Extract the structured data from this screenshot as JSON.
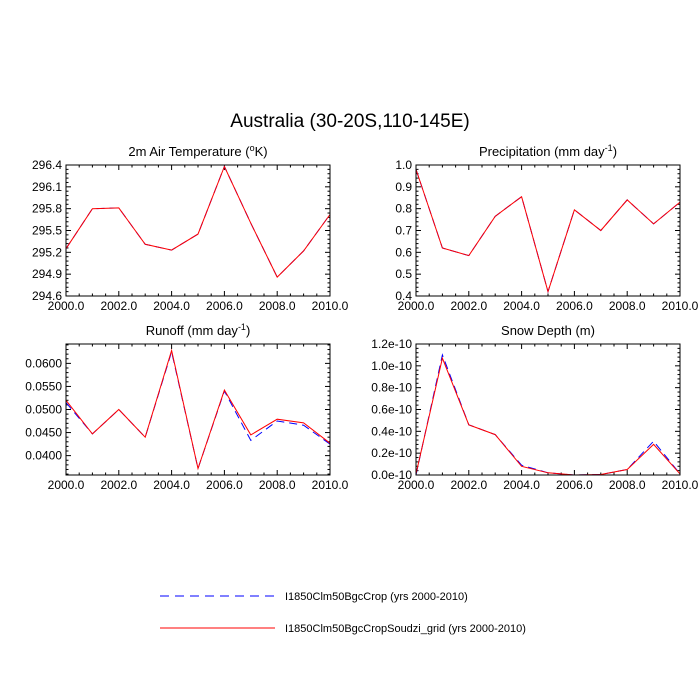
{
  "title": "Australia (30-20S,110-145E)",
  "legend": [
    {
      "label": "I1850Clm50BgcCrop (yrs 2000-2010)",
      "color": "#0000ff",
      "dash": true
    },
    {
      "label": "I1850Clm50BgcCropSoudzi_grid (yrs 2000-2010)",
      "color": "#ff0000",
      "dash": false
    }
  ],
  "chart_data": [
    {
      "type": "line",
      "title": "2m Air Temperature (°K)",
      "title_main": "2m Air Temperature (",
      "title_sup": "o",
      "title_tail": "K)",
      "x": [
        2000,
        2001,
        2002,
        2003,
        2004,
        2005,
        2006,
        2007,
        2008,
        2009,
        2010
      ],
      "xlim": [
        2000,
        2010
      ],
      "xticks": [
        "2000.0",
        "2002.0",
        "2004.0",
        "2006.0",
        "2008.0",
        "2010.0"
      ],
      "ylim": [
        294.6,
        296.4
      ],
      "yticks": [
        "294.6",
        "294.9",
        "295.2",
        "295.5",
        "295.8",
        "296.1",
        "296.4"
      ],
      "series": [
        {
          "name": "I1850Clm50BgcCrop (yrs 2000-2010)",
          "values": [
            295.25,
            295.8,
            295.81,
            295.31,
            295.23,
            295.45,
            296.38,
            295.6,
            294.86,
            295.22,
            295.72
          ]
        },
        {
          "name": "I1850Clm50BgcCropSoudzi_grid (yrs 2000-2010)",
          "values": [
            295.25,
            295.8,
            295.81,
            295.31,
            295.23,
            295.45,
            296.38,
            295.6,
            294.86,
            295.22,
            295.72
          ]
        }
      ]
    },
    {
      "type": "line",
      "title": "Precipitation (mm day-1)",
      "title_main": "Precipitation (mm day",
      "title_sup": "-1",
      "title_tail": ")",
      "x": [
        2000,
        2001,
        2002,
        2003,
        2004,
        2005,
        2006,
        2007,
        2008,
        2009,
        2010
      ],
      "xlim": [
        2000,
        2010
      ],
      "xticks": [
        "2000.0",
        "2002.0",
        "2004.0",
        "2006.0",
        "2008.0",
        "2010.0"
      ],
      "ylim": [
        0.4,
        1.0
      ],
      "yticks": [
        "0.4",
        "0.5",
        "0.6",
        "0.7",
        "0.8",
        "0.9",
        "1.0"
      ],
      "series": [
        {
          "name": "I1850Clm50BgcCrop (yrs 2000-2010)",
          "values": [
            0.98,
            0.62,
            0.585,
            0.765,
            0.855,
            0.42,
            0.795,
            0.7,
            0.84,
            0.73,
            0.83
          ]
        },
        {
          "name": "I1850Clm50BgcCropSoudzi_grid (yrs 2000-2010)",
          "values": [
            0.98,
            0.62,
            0.585,
            0.765,
            0.855,
            0.42,
            0.795,
            0.7,
            0.84,
            0.73,
            0.83
          ]
        }
      ]
    },
    {
      "type": "line",
      "title": "Runoff (mm day-1)",
      "title_main": "Runoff (mm day",
      "title_sup": "-1",
      "title_tail": ")",
      "x": [
        2000,
        2001,
        2002,
        2003,
        2004,
        2005,
        2006,
        2007,
        2008,
        2009,
        2010
      ],
      "xlim": [
        2000,
        2010
      ],
      "xticks": [
        "2000.0",
        "2002.0",
        "2004.0",
        "2006.0",
        "2008.0",
        "2010.0"
      ],
      "ylim": [
        0.0358,
        0.0642
      ],
      "yticks": [
        "0.0400",
        "0.0450",
        "0.0500",
        "0.0550",
        "0.0600"
      ],
      "series": [
        {
          "name": "I1850Clm50BgcCrop (yrs 2000-2010)",
          "values": [
            0.0515,
            0.0447,
            0.05,
            0.044,
            0.0625,
            0.0372,
            0.054,
            0.0433,
            0.0475,
            0.0466,
            0.0425
          ]
        },
        {
          "name": "I1850Clm50BgcCropSoudzi_grid (yrs 2000-2010)",
          "values": [
            0.052,
            0.0447,
            0.05,
            0.044,
            0.0628,
            0.0372,
            0.0542,
            0.0445,
            0.0479,
            0.0471,
            0.0427
          ]
        }
      ]
    },
    {
      "type": "line",
      "title": "Snow Depth (m)",
      "title_main": "Snow Depth (m)",
      "title_sup": "",
      "title_tail": "",
      "x": [
        2000,
        2001,
        2002,
        2003,
        2004,
        2005,
        2006,
        2007,
        2008,
        2009,
        2010
      ],
      "xlim": [
        2000,
        2010
      ],
      "xticks": [
        "2000.0",
        "2002.0",
        "2004.0",
        "2006.0",
        "2008.0",
        "2010.0"
      ],
      "ylim": [
        0,
        1.2e-10
      ],
      "yticks": [
        "0.0e-10",
        "0.2e-10",
        "0.4e-10",
        "0.6e-10",
        "0.8e-10",
        "1.0e-10",
        "1.2e-10"
      ],
      "series": [
        {
          "name": "I1850Clm50BgcCrop (yrs 2000-2010)",
          "values": [
            0,
            1.1e-10,
            4.6e-11,
            3.7e-11,
            9e-12,
            2e-12,
            0,
            5e-13,
            5e-12,
            3.1e-11,
            1e-12
          ]
        },
        {
          "name": "I1850Clm50BgcCropSoudzi_grid (yrs 2000-2010)",
          "values": [
            1e-12,
            1.07e-10,
            4.6e-11,
            3.7e-11,
            8e-12,
            2e-12,
            0,
            5e-13,
            5e-12,
            2.8e-11,
            1e-12
          ]
        }
      ]
    }
  ]
}
